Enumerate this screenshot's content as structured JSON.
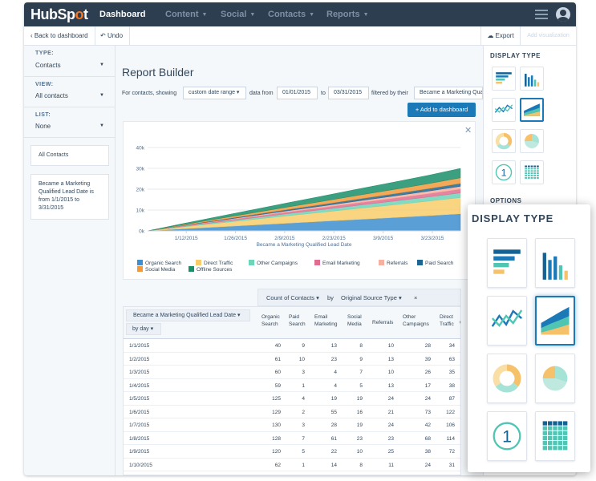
{
  "nav": {
    "logo_pre": "HubSp",
    "logo_o": "o",
    "logo_post": "t",
    "items": [
      {
        "label": "Dashboard"
      },
      {
        "label": "Content"
      },
      {
        "label": "Social"
      },
      {
        "label": "Contacts"
      },
      {
        "label": "Reports"
      }
    ]
  },
  "toolbar": {
    "back_label": "Back to dashboard",
    "undo_label": "Undo",
    "export_label": "Export",
    "add_visualization_label": "Add visualization"
  },
  "sidebar": {
    "type_label": "TYPE:",
    "type_value": "Contacts",
    "view_label": "VIEW:",
    "view_value": "All contacts",
    "list_label": "LIST:",
    "list_value": "None",
    "card1": "All Contacts",
    "card2": "Became a Marketing Qualified Lead Date is from 1/1/2015 to 3/31/2015"
  },
  "main": {
    "title": "Report Builder",
    "filter_prefix": "For contacts, showing",
    "range_select": "custom date range",
    "data_from": "data from",
    "date_from": "01/01/2015",
    "to": "to",
    "date_to": "03/31/2015",
    "filtered_by": "filtered by their",
    "filter_field": "Became a Marketing Qualified Lead Date",
    "add_to_dashboard": "+ Add to dashboard"
  },
  "chart_data": {
    "type": "area",
    "stacked": true,
    "xlabel": "Became a Marketing Qualified Lead Date",
    "ylabel": "",
    "y_ticks": [
      "0k",
      "10k",
      "20k",
      "30k",
      "40k"
    ],
    "ylim": [
      0,
      40000
    ],
    "x_ticks": [
      "1/12/2015",
      "1/26/2015",
      "2/9/2015",
      "2/23/2015",
      "3/9/2015",
      "3/23/2015"
    ],
    "grid": true,
    "legend_position": "bottom",
    "x_days": [
      0,
      10,
      20,
      30,
      40,
      50,
      60,
      70,
      80,
      89
    ],
    "series": [
      {
        "name": "Organic Search",
        "color": "#3e8ed0",
        "values": [
          0,
          1000,
          1900,
          2800,
          3700,
          4600,
          5500,
          6400,
          7300,
          8200
        ]
      },
      {
        "name": "Direct Traffic",
        "color": "#f8cc6b",
        "values": [
          0,
          900,
          1800,
          2700,
          3600,
          4400,
          5300,
          6100,
          7000,
          7800
        ]
      },
      {
        "name": "Other Campaigns",
        "color": "#6ed5b8",
        "values": [
          0,
          250,
          500,
          750,
          1000,
          1250,
          1500,
          1750,
          2000,
          2250
        ]
      },
      {
        "name": "Email Marketing",
        "color": "#e06d8f",
        "values": [
          0,
          200,
          400,
          600,
          800,
          1000,
          1200,
          1400,
          1600,
          1800
        ]
      },
      {
        "name": "Referrals",
        "color": "#f6b0a0",
        "values": [
          0,
          150,
          300,
          450,
          600,
          750,
          900,
          1050,
          1200,
          1350
        ]
      },
      {
        "name": "Paid Search",
        "color": "#1d6691",
        "values": [
          0,
          150,
          300,
          450,
          600,
          750,
          900,
          1050,
          1200,
          1350
        ]
      },
      {
        "name": "Social Media",
        "color": "#f29a3b",
        "values": [
          0,
          300,
          600,
          900,
          1200,
          1500,
          1800,
          2100,
          2400,
          2700
        ]
      },
      {
        "name": "Offline Sources",
        "color": "#1a8f6a",
        "values": [
          0,
          500,
          1000,
          1500,
          2000,
          2500,
          3000,
          3500,
          4000,
          4500
        ]
      }
    ]
  },
  "pivot": {
    "measure": "Count of Contacts",
    "by": "by",
    "dimension": "Original Source Type",
    "close": "×"
  },
  "table": {
    "row_header": "Became a Marketing Qualified Lead Date",
    "group": "by day",
    "columns": [
      "Organic Search",
      "Paid Search",
      "Email Marketing",
      "Social Media",
      "Referrals",
      "Other Campaigns",
      "Direct Traffic",
      "O"
    ],
    "rows": [
      {
        "date": "1/1/2015",
        "v": [
          "40",
          "9",
          "13",
          "8",
          "10",
          "28",
          "34"
        ]
      },
      {
        "date": "1/2/2015",
        "v": [
          "61",
          "10",
          "23",
          "9",
          "13",
          "39",
          "63"
        ]
      },
      {
        "date": "1/3/2015",
        "v": [
          "60",
          "3",
          "4",
          "7",
          "10",
          "26",
          "35"
        ]
      },
      {
        "date": "1/4/2015",
        "v": [
          "59",
          "1",
          "4",
          "5",
          "13",
          "17",
          "38"
        ]
      },
      {
        "date": "1/5/2015",
        "v": [
          "125",
          "4",
          "19",
          "19",
          "24",
          "24",
          "87"
        ]
      },
      {
        "date": "1/6/2015",
        "v": [
          "129",
          "2",
          "55",
          "16",
          "21",
          "73",
          "122"
        ]
      },
      {
        "date": "1/7/2015",
        "v": [
          "130",
          "3",
          "28",
          "19",
          "24",
          "42",
          "106"
        ]
      },
      {
        "date": "1/8/2015",
        "v": [
          "128",
          "7",
          "61",
          "23",
          "23",
          "68",
          "114"
        ]
      },
      {
        "date": "1/9/2015",
        "v": [
          "120",
          "5",
          "22",
          "10",
          "25",
          "38",
          "72"
        ]
      },
      {
        "date": "1/10/2015",
        "v": [
          "62",
          "1",
          "14",
          "8",
          "11",
          "24",
          "31"
        ]
      }
    ]
  },
  "right_panel": {
    "display_type": "DISPLAY TYPE",
    "options": "OPTIONS",
    "tiles": [
      "horizontal-bar-icon",
      "vertical-bar-icon",
      "line-chart-icon",
      "area-chart-icon",
      "donut-chart-icon",
      "pie-chart-icon",
      "number-icon",
      "table-icon"
    ],
    "selected": "area-chart-icon",
    "number_glyph": "1"
  },
  "overlay": {
    "title": "DISPLAY TYPE"
  }
}
